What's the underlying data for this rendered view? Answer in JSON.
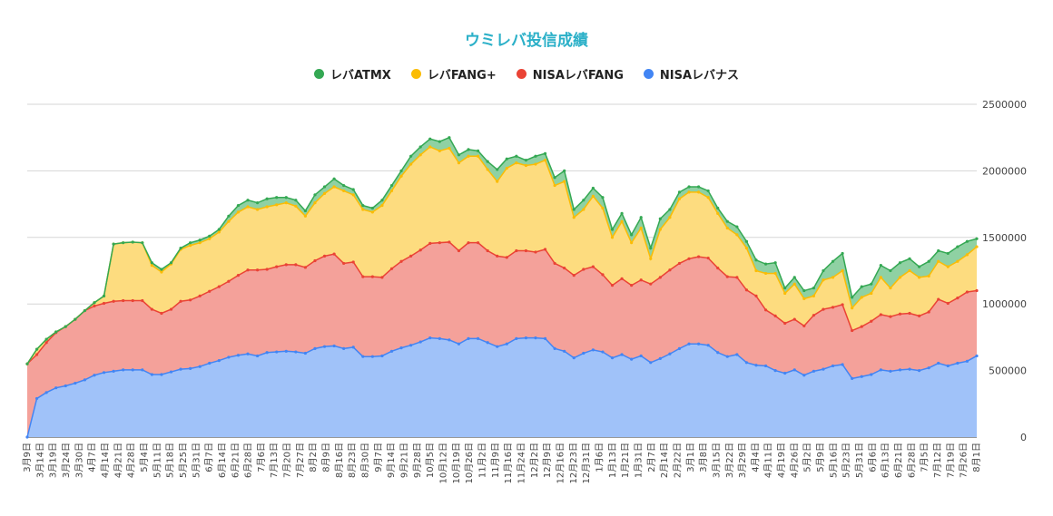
{
  "chart_data": {
    "type": "area",
    "stacked": true,
    "title": "ウミレバ投信成績",
    "legend_position": "top",
    "grid": true,
    "ylim": [
      0,
      2500000
    ],
    "yticks": [
      0,
      500000,
      1000000,
      1500000,
      2000000,
      2500000
    ],
    "ytick_labels": [
      "0",
      "500000",
      "1000000",
      "1500000",
      "2000000",
      "2500000"
    ],
    "x_tick_labels": [
      "3月9日",
      "3月14日",
      "3月19日",
      "3月24日",
      "3月30日",
      "4月7日",
      "4月14日",
      "4月21日",
      "4月28日",
      "5月4日",
      "5月11日",
      "5月18日",
      "5月25日",
      "5月31日",
      "6月7日",
      "6月14日",
      "6月21日",
      "6月28日",
      "7月6日",
      "7月13日",
      "7月20日",
      "7月27日",
      "8月2日",
      "8月9日",
      "8月16日",
      "8月23日",
      "8月30日",
      "9月7日",
      "9月14日",
      "9月21日",
      "9月28日",
      "10月5日",
      "10月12日",
      "10月19日",
      "10月26日",
      "11月2日",
      "11月9日",
      "11月16日",
      "11月24日",
      "12月2日",
      "12月9日",
      "12月16日",
      "12月23日",
      "12月31日",
      "1月6日",
      "1月13日",
      "1月21日",
      "1月31日",
      "2月7日",
      "2月14日",
      "2月22日",
      "3月1日",
      "3月8日",
      "3月15日",
      "3月22日",
      "3月29日",
      "4月4日",
      "4月11日",
      "4月19日",
      "4月26日",
      "5月2日",
      "5月9日",
      "5月16日",
      "5月23日",
      "5月31日",
      "6月6日",
      "6月13日",
      "6月21日",
      "6月28日",
      "7月5日",
      "7月12日",
      "7月19日",
      "7月26日",
      "8月1日"
    ],
    "legend": [
      "レバATMX",
      "レバFANG+",
      "NISAレバFANG",
      "NISAレバナス"
    ],
    "series": [
      {
        "name": "NISAレバナス",
        "color": "#4285f4",
        "fill": "#a0c2f9",
        "values": [
          0,
          290000,
          335000,
          370000,
          385000,
          405000,
          430000,
          465000,
          485000,
          495000,
          505000,
          505000,
          505000,
          470000,
          470000,
          490000,
          510000,
          515000,
          530000,
          555000,
          575000,
          600000,
          615000,
          625000,
          610000,
          635000,
          640000,
          645000,
          640000,
          630000,
          665000,
          680000,
          685000,
          665000,
          675000,
          605000,
          605000,
          610000,
          645000,
          670000,
          690000,
          715000,
          745000,
          740000,
          730000,
          700000,
          740000,
          740000,
          710000,
          680000,
          700000,
          740000,
          745000,
          745000,
          740000,
          665000,
          645000,
          595000,
          630000,
          655000,
          640000,
          595000,
          620000,
          585000,
          610000,
          560000,
          590000,
          625000,
          665000,
          700000,
          700000,
          690000,
          635000,
          605000,
          620000,
          560000,
          540000,
          535000,
          500000,
          480000,
          505000,
          465000,
          495000,
          510000,
          535000,
          545000,
          440000,
          455000,
          470000,
          505000,
          495000,
          505000,
          510000,
          500000,
          520000,
          555000,
          535000,
          555000,
          570000,
          610000
        ]
      },
      {
        "name": "NISAレバFANG",
        "color": "#ea4335",
        "fill": "#f4a19a",
        "values": [
          550000,
          330000,
          375000,
          415000,
          445000,
          480000,
          520000,
          520000,
          520000,
          525000,
          520000,
          520000,
          520000,
          490000,
          460000,
          470000,
          510000,
          515000,
          530000,
          540000,
          555000,
          570000,
          600000,
          630000,
          645000,
          625000,
          640000,
          650000,
          655000,
          645000,
          660000,
          680000,
          690000,
          640000,
          640000,
          600000,
          600000,
          590000,
          620000,
          650000,
          670000,
          690000,
          710000,
          720000,
          735000,
          700000,
          720000,
          720000,
          690000,
          680000,
          650000,
          660000,
          655000,
          645000,
          670000,
          640000,
          625000,
          620000,
          630000,
          625000,
          580000,
          545000,
          570000,
          555000,
          570000,
          590000,
          610000,
          630000,
          640000,
          640000,
          655000,
          655000,
          635000,
          600000,
          580000,
          545000,
          520000,
          420000,
          410000,
          375000,
          380000,
          370000,
          420000,
          450000,
          440000,
          450000,
          360000,
          375000,
          400000,
          415000,
          410000,
          420000,
          420000,
          410000,
          420000,
          480000,
          470000,
          490000,
          520000,
          490000
        ]
      },
      {
        "name": "レバFANG+",
        "color": "#fbbc04",
        "fill": "#fddc7f",
        "values": [
          0,
          0,
          0,
          0,
          0,
          0,
          0,
          0,
          0,
          0,
          0,
          0,
          0,
          0,
          0,
          0,
          0,
          0,
          0,
          0,
          0,
          0,
          0,
          0,
          0,
          0,
          0,
          0,
          0,
          0,
          0,
          0,
          0,
          0,
          0,
          0,
          0,
          0,
          0,
          0,
          0,
          0,
          0,
          0,
          0,
          0,
          0,
          0,
          0,
          0,
          0,
          0,
          0,
          0,
          0,
          0,
          0,
          0,
          0,
          0,
          0,
          0,
          0,
          0,
          0,
          0,
          0,
          0,
          0,
          0,
          0,
          0,
          0,
          0,
          0,
          0,
          0,
          0,
          0,
          0,
          0,
          0,
          0,
          0,
          0,
          0,
          0,
          0,
          0,
          0,
          0,
          0,
          0,
          0,
          0,
          0,
          0,
          0,
          0,
          0
        ]
      },
      {
        "name": "レバATMX",
        "color": "#34a853",
        "fill": "#8fd1a3",
        "values": [
          0,
          0,
          0,
          0,
          0,
          0,
          0,
          0,
          0,
          0,
          0,
          0,
          0,
          0,
          0,
          0,
          0,
          0,
          0,
          0,
          0,
          0,
          0,
          0,
          0,
          0,
          0,
          0,
          0,
          0,
          0,
          0,
          0,
          0,
          0,
          0,
          0,
          0,
          0,
          0,
          0,
          0,
          0,
          0,
          0,
          0,
          0,
          0,
          0,
          0,
          0,
          0,
          0,
          0,
          0,
          0,
          0,
          0,
          0,
          0,
          0,
          0,
          0,
          0,
          0,
          0,
          0,
          0,
          0,
          0,
          0,
          0,
          0,
          0,
          0,
          0,
          0,
          0,
          0,
          0,
          0,
          0,
          0,
          0,
          0,
          0,
          0,
          0,
          0,
          0,
          0,
          0,
          0,
          0,
          0,
          0,
          0,
          0,
          0,
          0
        ]
      }
    ],
    "top_totals": {
      "レバFANG+": [
        550000,
        660000,
        735000,
        790000,
        830000,
        885000,
        950000,
        1010000,
        1060000,
        1450000,
        1460000,
        1465000,
        1460000,
        1290000,
        1240000,
        1300000,
        1410000,
        1440000,
        1460000,
        1490000,
        1540000,
        1620000,
        1690000,
        1730000,
        1710000,
        1730000,
        1745000,
        1760000,
        1735000,
        1660000,
        1760000,
        1830000,
        1880000,
        1850000,
        1820000,
        1710000,
        1690000,
        1740000,
        1850000,
        1960000,
        2050000,
        2120000,
        2180000,
        2150000,
        2170000,
        2060000,
        2110000,
        2110000,
        2010000,
        1920000,
        2020000,
        2060000,
        2040000,
        2050000,
        2080000,
        1890000,
        1920000,
        1650000,
        1710000,
        1810000,
        1720000,
        1500000,
        1620000,
        1460000,
        1570000,
        1340000,
        1560000,
        1650000,
        1790000,
        1840000,
        1840000,
        1800000,
        1680000,
        1570000,
        1520000,
        1420000,
        1250000,
        1230000,
        1230000,
        1080000,
        1150000,
        1040000,
        1060000,
        1180000,
        1200000,
        1250000,
        970000,
        1050000,
        1080000,
        1200000,
        1120000,
        1200000,
        1250000,
        1200000,
        1210000,
        1320000,
        1280000,
        1320000,
        1370000,
        1430000
      ]
    },
    "bottom_cum_atmx": [
      550000,
      660000,
      735000,
      790000,
      830000,
      885000,
      950000,
      1010000,
      1060000,
      1450000,
      1460000,
      1465000,
      1460000,
      1310000,
      1260000,
      1310000,
      1420000,
      1460000,
      1480000,
      1510000,
      1560000,
      1660000,
      1740000,
      1780000,
      1760000,
      1790000,
      1800000,
      1800000,
      1780000,
      1700000,
      1820000,
      1880000,
      1940000,
      1890000,
      1860000,
      1740000,
      1720000,
      1780000,
      1890000,
      2000000,
      2110000,
      2180000,
      2240000,
      2220000,
      2250000,
      2120000,
      2160000,
      2150000,
      2070000,
      2010000,
      2090000,
      2110000,
      2080000,
      2110000,
      2130000,
      1950000,
      2000000,
      1710000,
      1780000,
      1870000,
      1800000,
      1560000,
      1680000,
      1520000,
      1650000,
      1420000,
      1640000,
      1710000,
      1840000,
      1880000,
      1880000,
      1850000,
      1720000,
      1620000,
      1580000,
      1470000,
      1330000,
      1300000,
      1310000,
      1120000,
      1200000,
      1100000,
      1120000,
      1250000,
      1320000,
      1380000,
      1050000,
      1130000,
      1150000,
      1290000,
      1250000,
      1310000,
      1340000,
      1280000,
      1320000,
      1400000,
      1380000,
      1430000,
      1470000,
      1490000
    ]
  }
}
